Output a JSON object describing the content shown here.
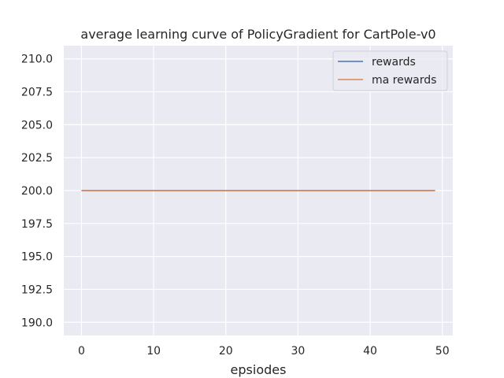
{
  "chart_data": {
    "type": "line",
    "title": "average learning curve of PolicyGradient for CartPole-v0",
    "xlabel": "epsiodes",
    "ylabel": "",
    "xlim": [
      -2.45,
      51.45
    ],
    "ylim": [
      189,
      211
    ],
    "xticks": [
      0,
      10,
      20,
      30,
      40,
      50
    ],
    "yticks": [
      190.0,
      192.5,
      195.0,
      197.5,
      200.0,
      202.5,
      205.0,
      207.5,
      210.0
    ],
    "grid": true,
    "legend_placement": "upper right",
    "background": "#eaeaf2",
    "series": [
      {
        "name": "rewards",
        "color": "#4c72b0",
        "x": [
          0,
          49
        ],
        "y": [
          200,
          200
        ]
      },
      {
        "name": "ma rewards",
        "color": "#dd8452",
        "x": [
          0,
          49
        ],
        "y": [
          200,
          200
        ]
      }
    ]
  }
}
